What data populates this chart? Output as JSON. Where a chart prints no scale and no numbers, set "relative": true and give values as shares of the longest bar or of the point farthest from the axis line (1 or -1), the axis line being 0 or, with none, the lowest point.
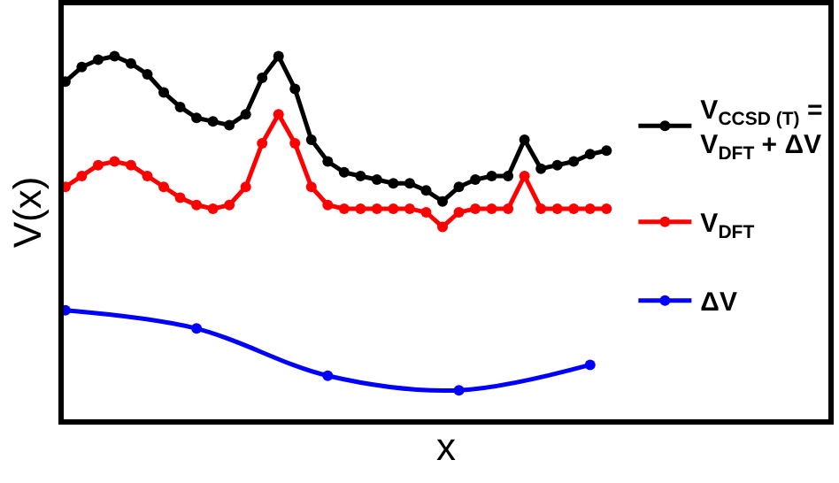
{
  "chart_data": {
    "type": "line",
    "relative": true,
    "xlabel": "x",
    "ylabel": "V(x)",
    "marker": "circle",
    "line_style": "solid",
    "legend": "right",
    "grid": false,
    "categories": [
      null,
      null,
      null,
      null,
      null,
      null,
      null,
      null,
      null,
      null,
      null,
      null,
      null,
      null,
      null,
      null,
      null,
      null,
      null,
      null,
      null,
      null,
      null,
      null,
      null,
      null,
      null,
      null,
      null,
      null,
      null,
      null,
      null,
      null
    ],
    "series": [
      {
        "name": "V$_{CCSD (T)}$ = V$_{DFT}$ + ΔV",
        "color": "#000000",
        "values": [
          0.93,
          0.97,
          0.99,
          1.0,
          0.98,
          0.95,
          0.9,
          0.86,
          0.83,
          0.82,
          0.81,
          0.84,
          0.94,
          1.0,
          0.91,
          0.77,
          0.71,
          0.68,
          0.67,
          0.66,
          0.65,
          0.65,
          0.63,
          0.6,
          0.64,
          0.66,
          0.67,
          0.67,
          0.77,
          0.69,
          0.7,
          0.71,
          0.73,
          0.74
        ]
      },
      {
        "name": "V$_{DFT}$",
        "color": "#ff0000",
        "values": [
          0.64,
          0.67,
          0.7,
          0.71,
          0.7,
          0.67,
          0.64,
          0.61,
          0.59,
          0.58,
          0.59,
          0.64,
          0.76,
          0.84,
          0.76,
          0.64,
          0.59,
          0.58,
          0.58,
          0.58,
          0.58,
          0.58,
          0.57,
          0.53,
          0.57,
          0.58,
          0.58,
          0.58,
          0.67,
          0.58,
          0.58,
          0.58,
          0.58,
          0.58
        ]
      },
      {
        "name": "ΔV",
        "color": "#0000ff",
        "values": [
          0.3,
          null,
          null,
          null,
          null,
          null,
          null,
          null,
          0.25,
          null,
          null,
          null,
          null,
          null,
          null,
          null,
          0.12,
          null,
          null,
          null,
          null,
          null,
          null,
          null,
          0.08,
          null,
          null,
          null,
          null,
          null,
          null,
          null,
          0.15,
          null
        ]
      }
    ]
  }
}
